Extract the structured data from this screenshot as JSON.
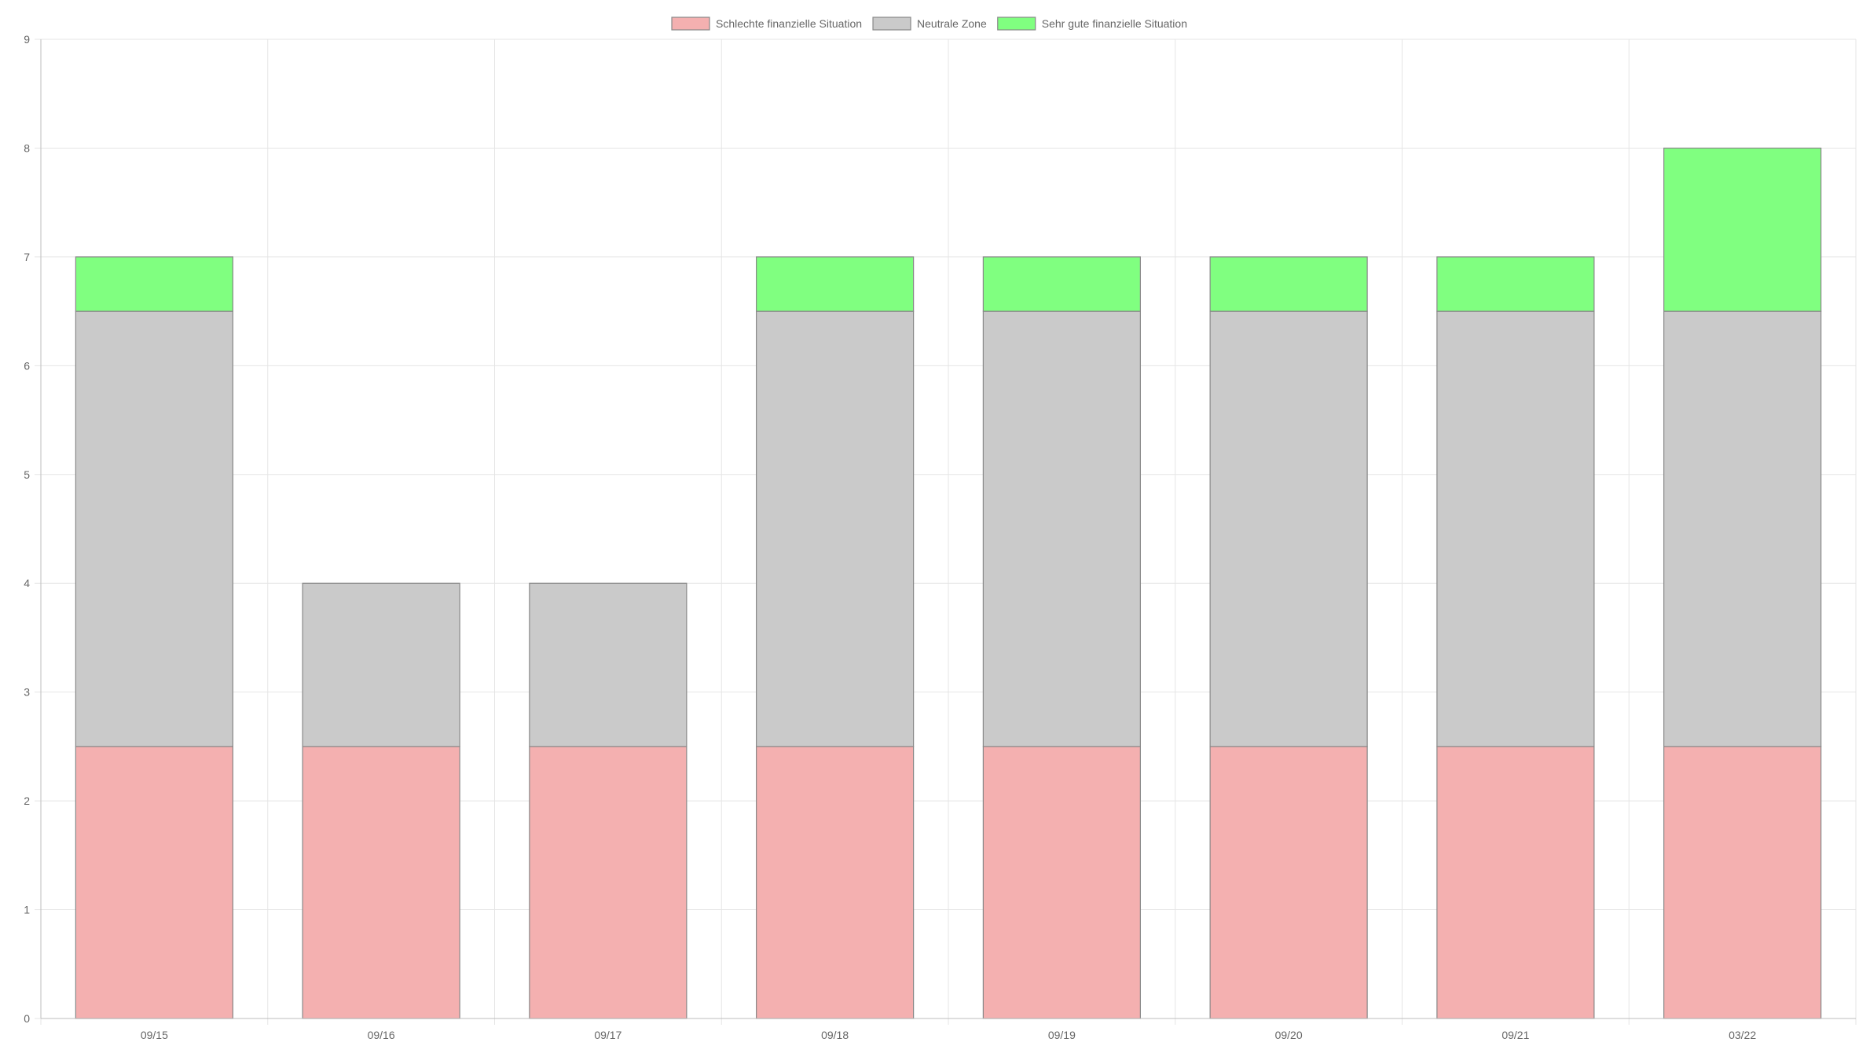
{
  "chart_data": {
    "type": "bar",
    "stacked": true,
    "categories": [
      "09/15",
      "09/16",
      "09/17",
      "09/18",
      "09/19",
      "09/20",
      "09/21",
      "03/22"
    ],
    "series": [
      {
        "name": "Schlechte finanzielle Situation",
        "color": "#f4b0b0",
        "values": [
          2.5,
          2.5,
          2.5,
          2.5,
          2.5,
          2.5,
          2.5,
          2.5
        ]
      },
      {
        "name": "Neutrale Zone",
        "color": "#cacaca",
        "values": [
          4,
          1.5,
          1.5,
          4,
          4,
          4,
          4,
          4
        ]
      },
      {
        "name": "Sehr gute finanzielle Situation",
        "color": "#80ff80",
        "values": [
          0.5,
          0,
          0,
          0.5,
          0.5,
          0.5,
          0.5,
          1.5
        ]
      }
    ],
    "ylim": [
      0,
      9
    ],
    "yticks": [
      0,
      1,
      2,
      3,
      4,
      5,
      6,
      7,
      8,
      9
    ],
    "grid": true,
    "legend_position": "top-center",
    "title": "",
    "xlabel": "",
    "ylabel": ""
  }
}
